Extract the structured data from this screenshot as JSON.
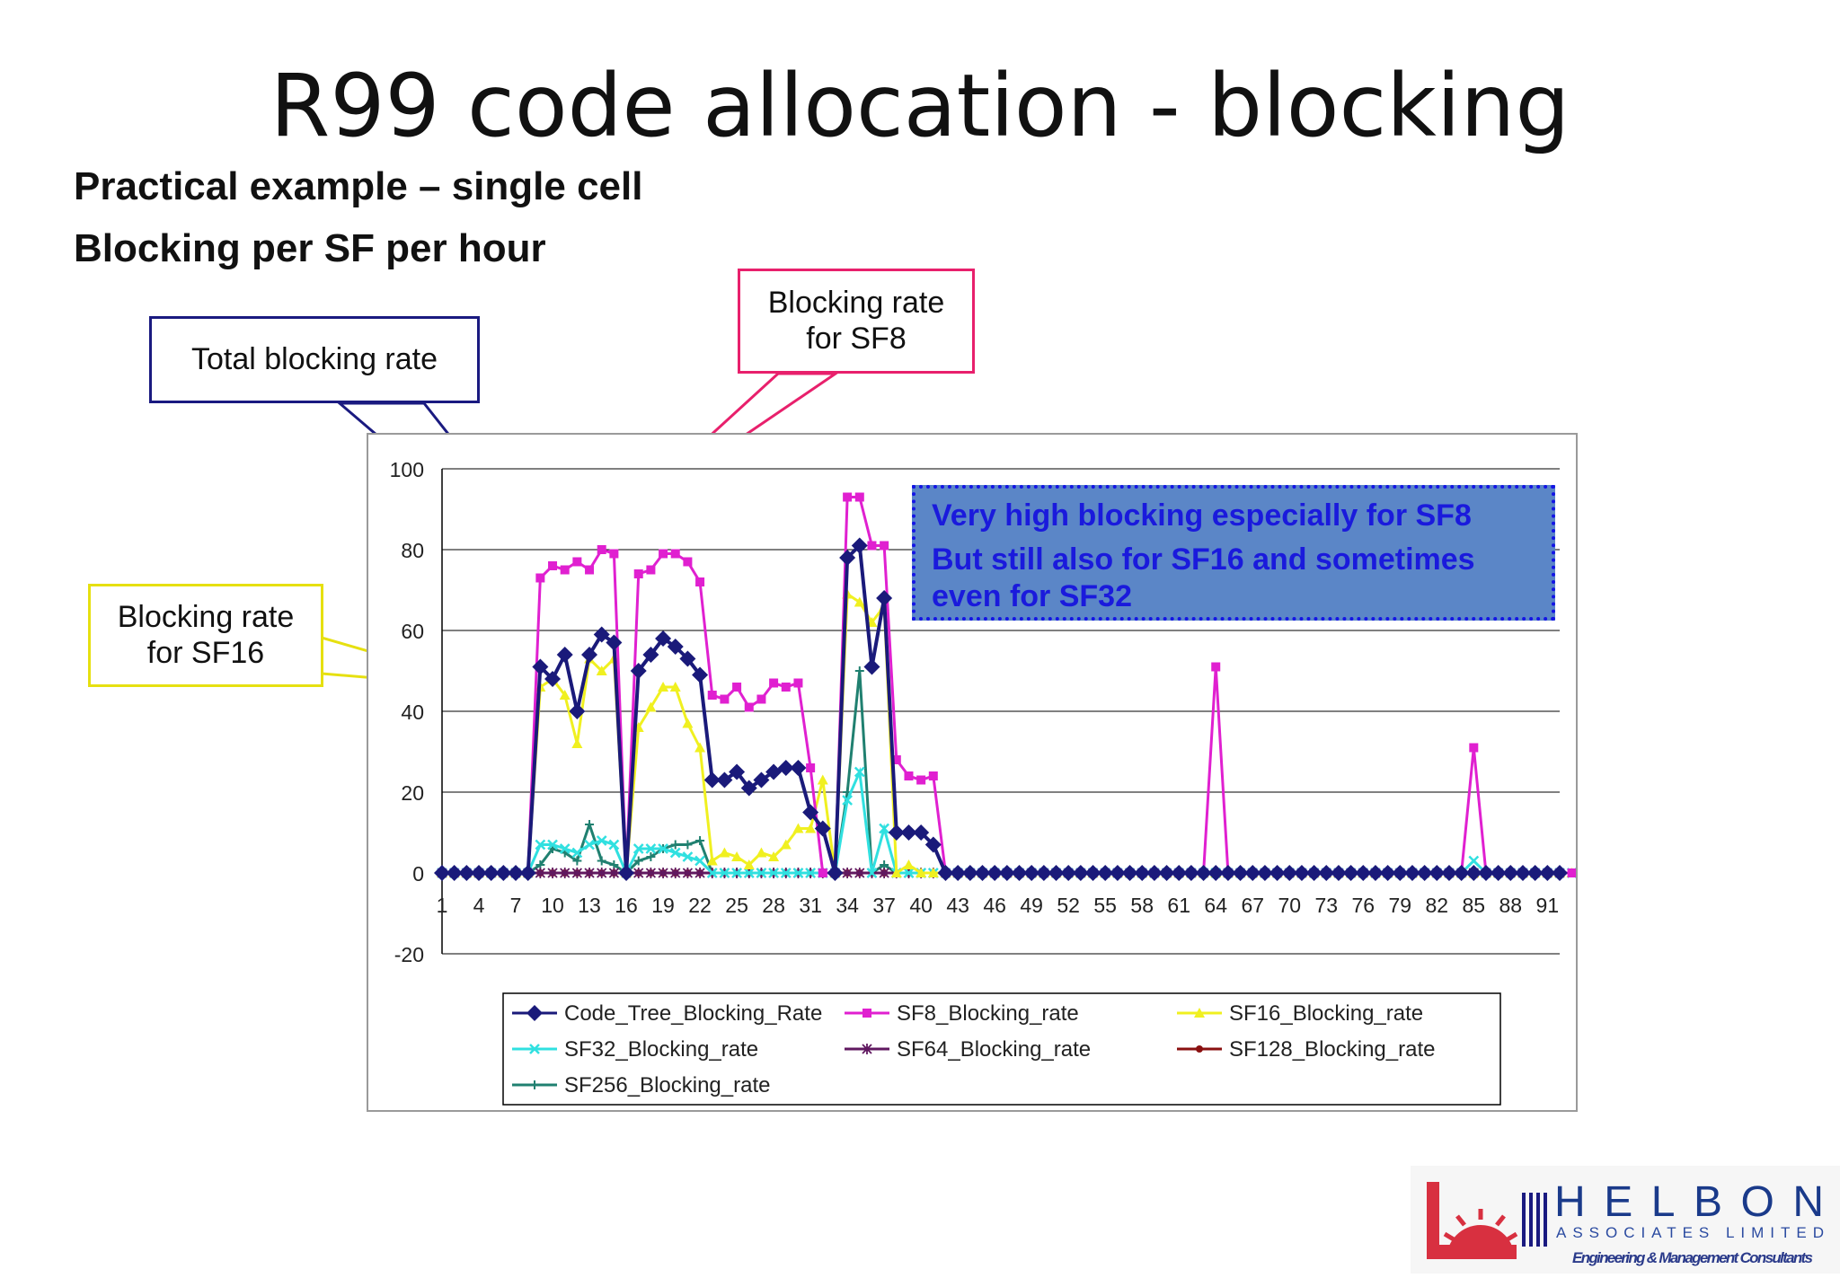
{
  "slide": {
    "title": "R99 code allocation - blocking",
    "subtitle1": "Practical example – single cell",
    "subtitle2": "Blocking per SF per hour"
  },
  "callouts": {
    "total": "Total blocking rate",
    "sf8_line1": "Blocking rate",
    "sf8_line2": "for SF8",
    "sf16_line1": "Blocking rate",
    "sf16_line2": "for SF16"
  },
  "note": {
    "line1": "Very high blocking especially for SF8",
    "line2": "But still also for SF16 and sometimes",
    "line3": "even for SF32"
  },
  "logo": {
    "name": "HELBON",
    "line2": "ASSOCIATES LIMITED",
    "line3": "Engineering & Management Consultants"
  },
  "chart_data": {
    "type": "line",
    "x_ticks": [
      "1",
      "4",
      "7",
      "10",
      "13",
      "16",
      "19",
      "22",
      "25",
      "28",
      "31",
      "34",
      "37",
      "40",
      "43",
      "46",
      "49",
      "52",
      "55",
      "58",
      "61",
      "64",
      "67",
      "70",
      "73",
      "76",
      "79",
      "82",
      "85",
      "88",
      "91"
    ],
    "y_ticks": [
      "-20",
      "0",
      "20",
      "40",
      "60",
      "80",
      "100"
    ],
    "ylim": [
      -20,
      100
    ],
    "xlim": [
      1,
      92
    ],
    "grid": true,
    "legend_position": "bottom",
    "series": [
      {
        "name": "Code_Tree_Blocking_Rate",
        "color": "#1a1a7a",
        "marker": "diamond",
        "values": [
          0,
          0,
          0,
          0,
          0,
          0,
          0,
          0,
          51,
          48,
          54,
          40,
          54,
          59,
          57,
          0,
          50,
          54,
          58,
          56,
          53,
          49,
          23,
          23,
          25,
          21,
          23,
          25,
          26,
          26,
          15,
          11,
          0,
          78,
          81,
          51,
          68,
          10,
          10,
          10,
          7,
          0,
          0,
          0,
          0,
          0,
          0,
          0,
          0,
          0,
          0,
          0,
          0,
          0,
          0,
          0,
          0,
          0,
          0,
          0,
          0,
          0,
          0,
          0,
          0,
          0,
          0,
          0,
          0,
          0,
          0,
          0,
          0,
          0,
          0,
          0,
          0,
          0,
          0,
          0,
          0,
          0,
          0,
          0,
          0,
          0,
          0,
          0,
          0,
          0,
          0,
          0
        ]
      },
      {
        "name": "SF8_Blocking_rate",
        "color": "#e020d0",
        "marker": "square",
        "values": [
          0,
          0,
          0,
          0,
          0,
          0,
          0,
          0,
          73,
          76,
          75,
          77,
          75,
          80,
          79,
          0,
          74,
          75,
          79,
          79,
          77,
          72,
          44,
          43,
          46,
          41,
          43,
          47,
          46,
          47,
          26,
          0,
          0,
          93,
          93,
          81,
          81,
          28,
          24,
          23,
          24,
          0,
          0,
          0,
          0,
          0,
          0,
          0,
          0,
          0,
          0,
          0,
          0,
          0,
          0,
          0,
          0,
          0,
          0,
          0,
          0,
          0,
          0,
          51,
          0,
          0,
          0,
          0,
          0,
          0,
          0,
          0,
          0,
          0,
          0,
          0,
          0,
          0,
          0,
          0,
          0,
          0,
          0,
          0,
          31,
          0,
          0,
          0,
          0,
          0,
          0,
          0,
          0
        ]
      },
      {
        "name": "SF16_Blocking_rate",
        "color": "#f0f020",
        "marker": "triangle",
        "values": [
          0,
          0,
          0,
          0,
          0,
          0,
          0,
          0,
          46,
          48,
          44,
          32,
          53,
          50,
          53,
          0,
          36,
          41,
          46,
          46,
          37,
          31,
          3,
          5,
          4,
          2,
          5,
          4,
          7,
          11,
          11,
          23,
          0,
          69,
          67,
          62,
          66,
          0,
          2,
          0,
          0,
          0,
          0,
          0,
          0,
          0,
          0,
          0,
          0,
          0,
          0,
          0,
          0,
          0,
          0,
          0,
          0,
          0,
          0,
          0,
          0,
          0,
          0,
          0,
          0,
          0,
          0,
          0,
          0,
          0,
          0,
          0,
          0,
          0,
          0,
          0,
          0,
          0,
          0,
          0,
          0,
          0,
          0,
          0,
          0,
          0,
          0,
          0,
          0,
          0,
          0,
          0,
          0
        ]
      },
      {
        "name": "SF32_Blocking_rate",
        "color": "#30e0e0",
        "marker": "x",
        "values": [
          0,
          0,
          0,
          0,
          0,
          0,
          0,
          0,
          7,
          7,
          6,
          5,
          7,
          8,
          7,
          0,
          6,
          6,
          6,
          5,
          4,
          3,
          0,
          0,
          0,
          0,
          0,
          0,
          0,
          0,
          0,
          0,
          0,
          18,
          25,
          0,
          11,
          0,
          0,
          0,
          0,
          0,
          0,
          0,
          0,
          0,
          0,
          0,
          0,
          0,
          0,
          0,
          0,
          0,
          0,
          0,
          0,
          0,
          0,
          0,
          0,
          0,
          0,
          0,
          0,
          0,
          0,
          0,
          0,
          0,
          0,
          0,
          0,
          0,
          0,
          0,
          0,
          0,
          0,
          0,
          0,
          0,
          0,
          0,
          3,
          0,
          0,
          0,
          0,
          0,
          0,
          0,
          0
        ]
      },
      {
        "name": "SF64_Blocking_rate",
        "color": "#601860",
        "marker": "star",
        "values": [
          0,
          0,
          0,
          0,
          0,
          0,
          0,
          0,
          0,
          0,
          0,
          0,
          0,
          0,
          0,
          0,
          0,
          0,
          0,
          0,
          0,
          0,
          0,
          0,
          0,
          0,
          0,
          0,
          0,
          0,
          0,
          0,
          0,
          0,
          0,
          0,
          0,
          0,
          0,
          0,
          0,
          0,
          0,
          0,
          0,
          0,
          0,
          0,
          0,
          0,
          0,
          0,
          0,
          0,
          0,
          0,
          0,
          0,
          0,
          0,
          0,
          0,
          0,
          0,
          0,
          0,
          0,
          0,
          0,
          0,
          0,
          0,
          0,
          0,
          0,
          0,
          0,
          0,
          0,
          0,
          0,
          0,
          0,
          0,
          0,
          0,
          0,
          0,
          0,
          0,
          0,
          0
        ]
      },
      {
        "name": "SF128_Blocking_rate",
        "color": "#8a1010",
        "marker": "circle",
        "values": [
          0,
          0,
          0,
          0,
          0,
          0,
          0,
          0,
          0,
          0,
          0,
          0,
          0,
          0,
          0,
          0,
          0,
          0,
          0,
          0,
          0,
          0,
          0,
          0,
          0,
          0,
          0,
          0,
          0,
          0,
          0,
          0,
          0,
          0,
          0,
          0,
          0,
          0,
          0,
          0,
          0,
          0,
          0,
          0,
          0,
          0,
          0,
          0,
          0,
          0,
          0,
          0,
          0,
          0,
          0,
          0,
          0,
          0,
          0,
          0,
          0,
          0,
          0,
          0,
          0,
          0,
          0,
          0,
          0,
          0,
          0,
          0,
          0,
          0,
          0,
          0,
          0,
          0,
          0,
          0,
          0,
          0,
          0,
          0,
          0,
          0,
          0,
          0,
          0,
          0,
          0,
          0
        ]
      },
      {
        "name": "SF256_Blocking_rate",
        "color": "#208070",
        "marker": "plus",
        "values": [
          0,
          0,
          0,
          0,
          0,
          0,
          0,
          0,
          2,
          6,
          5,
          3,
          12,
          3,
          2,
          0,
          3,
          4,
          6,
          7,
          7,
          8,
          0,
          0,
          0,
          0,
          0,
          0,
          0,
          0,
          0,
          0,
          0,
          20,
          50,
          0,
          2,
          0,
          0,
          0,
          0,
          0,
          0,
          0,
          0,
          0,
          0,
          0,
          0,
          0,
          0,
          0,
          0,
          0,
          0,
          0,
          0,
          0,
          0,
          0,
          0,
          0,
          0,
          0,
          0,
          0,
          0,
          0,
          0,
          0,
          0,
          0,
          0,
          0,
          0,
          0,
          0,
          0,
          0,
          0,
          0,
          0,
          0,
          0,
          0,
          0,
          0,
          0,
          0,
          0,
          0,
          0,
          0
        ]
      }
    ]
  }
}
